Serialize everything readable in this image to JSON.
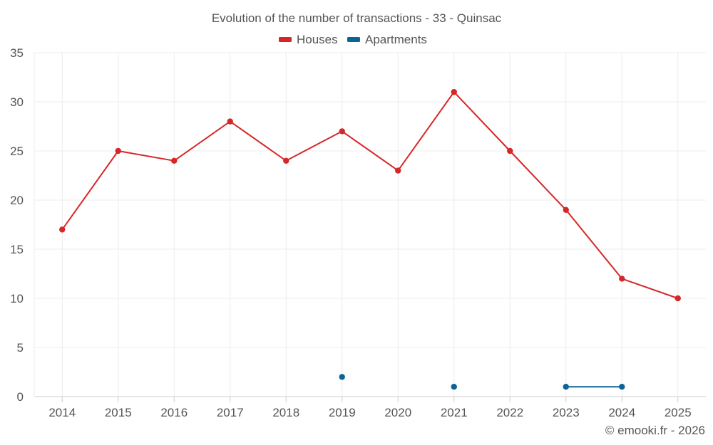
{
  "chart_data": {
    "type": "line",
    "title": "Evolution of the number of transactions - 33 - Quinsac",
    "categories": [
      "2014",
      "2015",
      "2016",
      "2017",
      "2018",
      "2019",
      "2020",
      "2021",
      "2022",
      "2023",
      "2024",
      "2025"
    ],
    "series": [
      {
        "name": "Houses",
        "color": "#d62728",
        "values": [
          17,
          25,
          24,
          28,
          24,
          27,
          23,
          31,
          25,
          19,
          12,
          10
        ]
      },
      {
        "name": "Apartments",
        "color": "#0b6496",
        "values": [
          null,
          null,
          null,
          null,
          null,
          2,
          null,
          1,
          null,
          1,
          1,
          null
        ]
      }
    ],
    "y_ticks": [
      0,
      5,
      10,
      15,
      20,
      25,
      30,
      35
    ],
    "ylim": [
      0,
      35
    ],
    "xlabel": "",
    "ylabel": "",
    "grid": true,
    "legend_position": "top-center"
  },
  "credit": "© emooki.fr - 2026"
}
